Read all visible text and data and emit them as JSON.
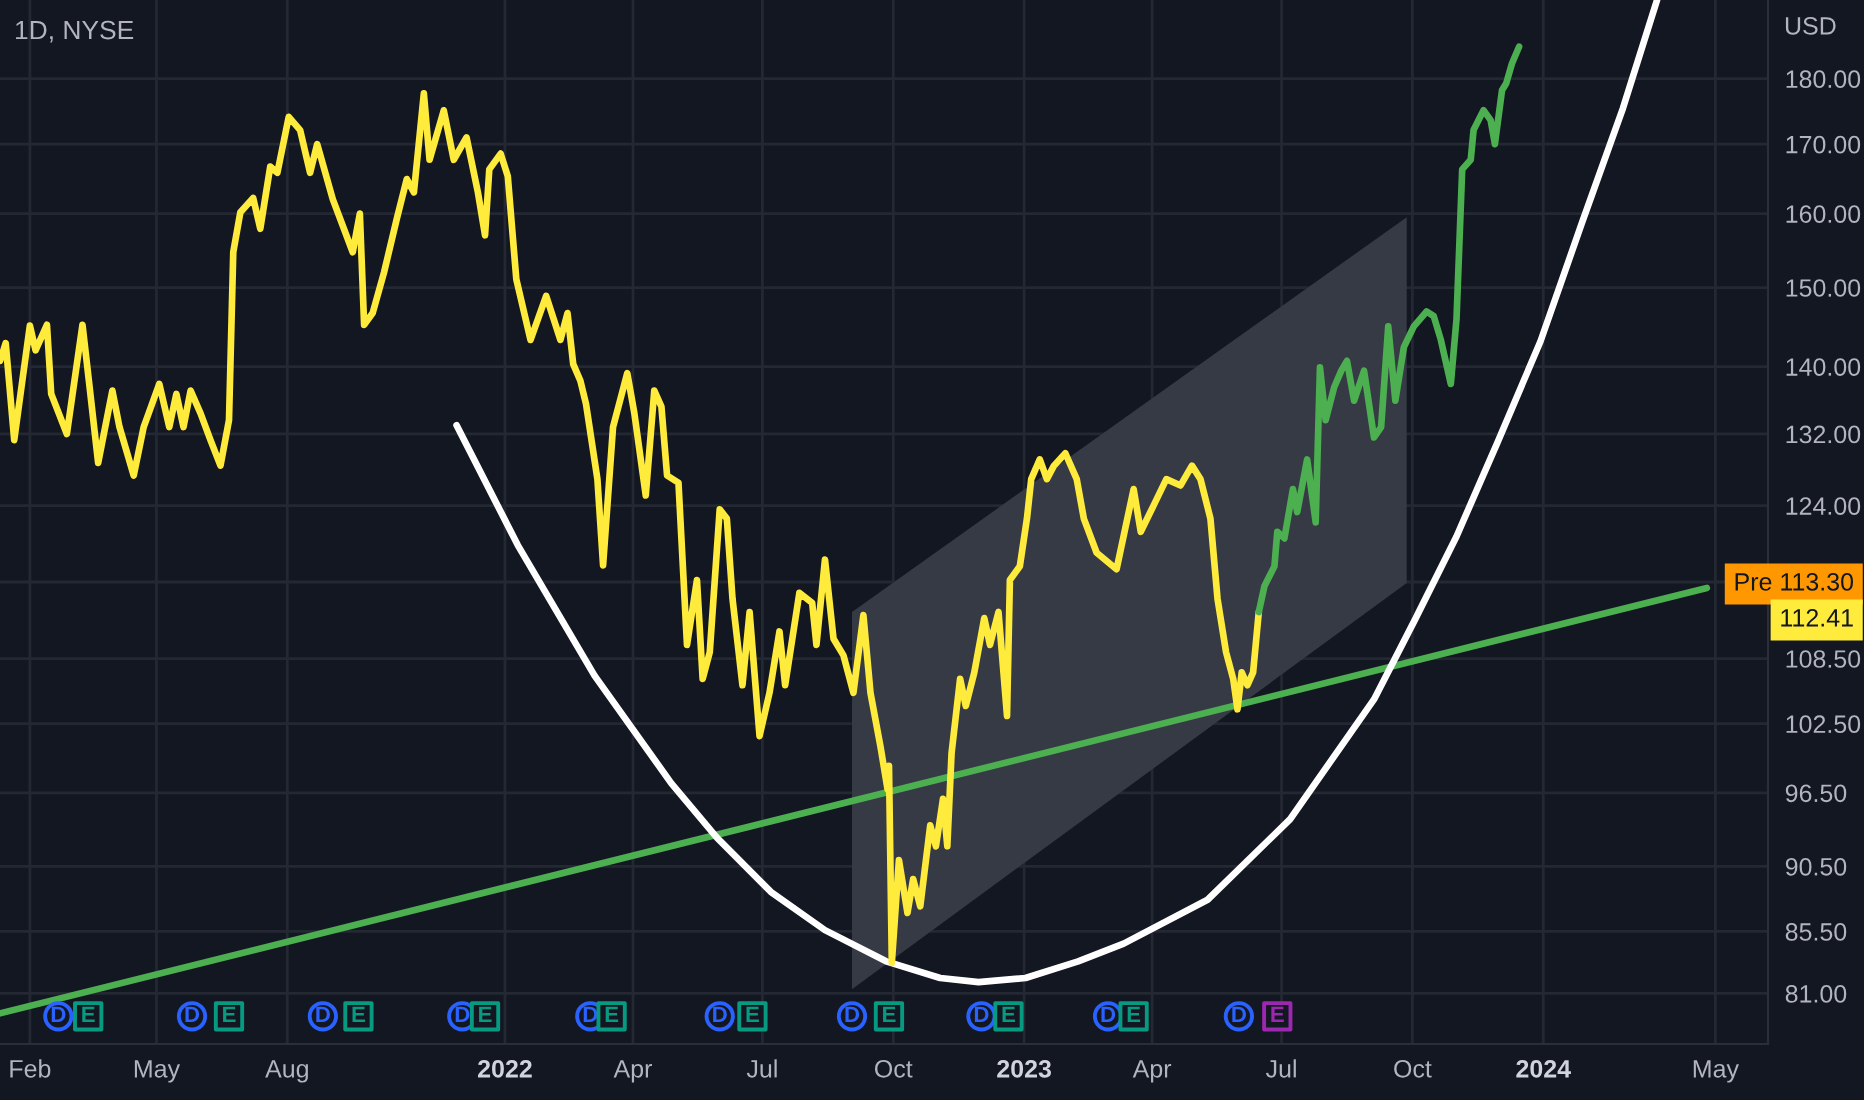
{
  "chart_data": {
    "type": "line",
    "title": "1D, NYSE",
    "ylabel": "USD",
    "log": "y",
    "grid": true,
    "xlim": [
      "2021-01-11",
      "2024-06-07"
    ],
    "ylim": [
      77.5,
      192.8
    ],
    "xticks": [
      {
        "value": "2021-02-01",
        "label": "Feb"
      },
      {
        "value": "2021-05-01",
        "label": "May"
      },
      {
        "value": "2021-08-01",
        "label": "Aug"
      },
      {
        "value": "2022-01-01",
        "label": "2022"
      },
      {
        "value": "2022-04-01",
        "label": "Apr"
      },
      {
        "value": "2022-07-01",
        "label": "Jul"
      },
      {
        "value": "2022-10-01",
        "label": "Oct"
      },
      {
        "value": "2023-01-01",
        "label": "2023"
      },
      {
        "value": "2023-04-01",
        "label": "Apr"
      },
      {
        "value": "2023-07-01",
        "label": "Jul"
      },
      {
        "value": "2023-10-01",
        "label": "Oct"
      },
      {
        "value": "2024-01-01",
        "label": "2024"
      },
      {
        "value": "2024-05-01",
        "label": "May"
      }
    ],
    "yticks": [
      {
        "value": 81,
        "label": "81.00"
      },
      {
        "value": 85.5,
        "label": "85.50"
      },
      {
        "value": 90.5,
        "label": "90.50"
      },
      {
        "value": 96.5,
        "label": "96.50"
      },
      {
        "value": 102.5,
        "label": "102.50"
      },
      {
        "value": 108.5,
        "label": "108.50"
      },
      {
        "value": 116,
        "label": null
      },
      {
        "value": 124,
        "label": "124.00"
      },
      {
        "value": 132,
        "label": "132.00"
      },
      {
        "value": 140,
        "label": "140.00"
      },
      {
        "value": 150,
        "label": "150.00"
      },
      {
        "value": 160,
        "label": "160.00"
      },
      {
        "value": 170,
        "label": "170.00"
      },
      {
        "value": 180,
        "label": "180.00"
      }
    ],
    "annotations": [
      "Pre 113.30",
      "112.41"
    ],
    "series": [
      {
        "color": "#363a45",
        "x": [
          "2022-09-02",
          "2023-09-27"
        ],
        "values": [
          null,
          null
        ],
        "lower": [
          81.3,
          115.9
        ],
        "upper": [
          113.0,
          159.5
        ]
      },
      {
        "color": "#4caf50",
        "x": [
          "2021-01-11",
          "2024-04-25"
        ],
        "values": [
          79.6,
          115.4
        ]
      },
      {
        "color": "#ffffff",
        "x": [
          "2021-11-28",
          "2022-01-10",
          "2022-03-05",
          "2022-04-28",
          "2022-05-30",
          "2022-07-07",
          "2022-08-14",
          "2022-09-26",
          "2022-11-03",
          "2022-11-30",
          "2023-01-02",
          "2023-02-08",
          "2023-03-12",
          "2023-05-10",
          "2023-07-07",
          "2023-09-04",
          "2023-10-03",
          "2023-11-01",
          "2023-11-30",
          "2023-12-30",
          "2024-01-28",
          "2024-02-26",
          "2024-03-21"
        ],
        "values": [
          133.0,
          119.8,
          106.9,
          97.3,
          92.8,
          88.5,
          85.6,
          83.3,
          82.1,
          81.8,
          82.1,
          83.3,
          84.6,
          87.9,
          94.3,
          104.7,
          112.3,
          120.7,
          131.1,
          143.1,
          158.6,
          175.4,
          192.8
        ]
      },
      {
        "color": "#ffeb3b",
        "x": [
          "2021-01-11",
          "2021-01-15",
          "2021-01-21",
          "2021-02-01",
          "2021-02-05",
          "2021-02-13",
          "2021-02-16",
          "2021-02-27",
          "2021-03-10",
          "2021-03-15",
          "2021-03-21",
          "2021-03-31",
          "2021-04-05",
          "2021-04-15",
          "2021-04-22",
          "2021-05-03",
          "2021-05-10",
          "2021-05-15",
          "2021-05-20",
          "2021-05-25",
          "2021-06-01",
          "2021-06-08",
          "2021-06-15",
          "2021-06-21",
          "2021-06-24",
          "2021-06-29",
          "2021-07-08",
          "2021-07-13",
          "2021-07-20",
          "2021-07-25",
          "2021-08-02",
          "2021-08-10",
          "2021-08-17",
          "2021-08-22",
          "2021-09-02",
          "2021-09-16",
          "2021-09-21",
          "2021-09-24",
          "2021-09-30",
          "2021-10-08",
          "2021-10-17",
          "2021-10-24",
          "2021-10-29",
          "2021-11-05",
          "2021-11-09",
          "2021-11-19",
          "2021-11-26",
          "2021-12-05",
          "2021-12-13",
          "2021-12-18",
          "2021-12-21",
          "2021-12-29",
          "2022-01-03",
          "2022-01-09",
          "2022-01-19",
          "2022-01-30",
          "2022-02-09",
          "2022-02-14",
          "2022-02-18",
          "2022-02-23",
          "2022-02-27",
          "2022-03-07",
          "2022-03-11",
          "2022-03-18",
          "2022-03-28",
          "2022-04-02",
          "2022-04-10",
          "2022-04-16",
          "2022-04-21",
          "2022-04-25",
          "2022-05-03",
          "2022-05-09",
          "2022-05-16",
          "2022-05-20",
          "2022-05-25",
          "2022-06-01",
          "2022-06-06",
          "2022-06-10",
          "2022-06-17",
          "2022-06-22",
          "2022-06-29",
          "2022-07-06",
          "2022-07-13",
          "2022-07-17",
          "2022-07-27",
          "2022-08-05",
          "2022-08-08",
          "2022-08-14",
          "2022-08-20",
          "2022-08-27",
          "2022-09-03",
          "2022-09-10",
          "2022-09-15",
          "2022-09-22",
          "2022-09-27",
          "2022-09-28",
          "2022-09-30",
          "2022-10-05",
          "2022-10-11",
          "2022-10-15",
          "2022-10-20",
          "2022-10-27",
          "2022-10-31",
          "2022-11-05",
          "2022-11-08",
          "2022-11-11",
          "2022-11-17",
          "2022-11-21",
          "2022-11-27",
          "2022-12-04",
          "2022-12-08",
          "2022-12-14",
          "2022-12-20",
          "2022-12-22",
          "2022-12-29",
          "2023-01-03",
          "2023-01-06",
          "2023-01-12",
          "2023-01-17",
          "2023-01-22",
          "2023-01-30",
          "2023-02-07",
          "2023-02-12",
          "2023-02-21",
          "2023-03-07",
          "2023-03-19",
          "2023-03-24",
          "2023-04-02",
          "2023-04-11",
          "2023-04-21",
          "2023-04-29",
          "2023-05-05",
          "2023-05-12",
          "2023-05-17",
          "2023-05-23",
          "2023-05-28",
          "2023-05-31",
          "2023-06-03",
          "2023-06-07",
          "2023-06-11",
          "2023-06-15"
        ],
        "values": [
          140.7,
          142.9,
          131.3,
          145.1,
          142.0,
          145.2,
          136.7,
          132.0,
          145.2,
          137.5,
          128.7,
          137.1,
          132.8,
          127.3,
          132.8,
          137.9,
          132.8,
          136.7,
          132.8,
          137.1,
          134.4,
          131.3,
          128.4,
          133.6,
          154.7,
          160.2,
          162.2,
          157.9,
          166.7,
          165.8,
          174.1,
          172.1,
          165.8,
          170.0,
          162.0,
          154.7,
          160.0,
          145.2,
          146.7,
          152.0,
          159.3,
          164.9,
          163.0,
          177.7,
          167.7,
          175.1,
          167.7,
          171.0,
          163.0,
          157.0,
          166.3,
          168.6,
          165.3,
          151.1,
          143.3,
          148.9,
          143.3,
          146.7,
          140.3,
          138.3,
          135.5,
          126.9,
          117.7,
          132.8,
          139.2,
          134.4,
          125.1,
          137.1,
          135.2,
          127.3,
          126.5,
          109.8,
          116.2,
          106.6,
          109.1,
          123.6,
          122.6,
          114.3,
          106.0,
          113.0,
          101.4,
          105.3,
          111.1,
          106.0,
          114.9,
          113.9,
          109.8,
          118.3,
          110.4,
          108.8,
          105.3,
          112.7,
          105.3,
          100.5,
          96.8,
          98.8,
          83.2,
          91.0,
          86.9,
          89.5,
          87.4,
          93.8,
          92.1,
          96.0,
          92.1,
          99.9,
          106.6,
          104.1,
          107.2,
          112.4,
          109.8,
          113.0,
          103.2,
          116.2,
          117.6,
          122.6,
          126.9,
          129.1,
          126.9,
          128.4,
          129.8,
          126.9,
          122.6,
          119.0,
          117.3,
          125.8,
          121.2,
          124.0,
          126.9,
          126.2,
          128.4,
          126.9,
          122.6,
          114.3,
          109.1,
          106.6,
          103.8,
          107.2,
          106.0,
          107.2,
          113.0
        ]
      },
      {
        "color": "#4caf50",
        "x": [
          "2023-06-15",
          "2023-06-19",
          "2023-06-26",
          "2023-06-28",
          "2023-07-03",
          "2023-07-09",
          "2023-07-12",
          "2023-07-19",
          "2023-07-25",
          "2023-07-28",
          "2023-08-01",
          "2023-08-07",
          "2023-08-12",
          "2023-08-16",
          "2023-08-21",
          "2023-08-28",
          "2023-09-04",
          "2023-09-09",
          "2023-09-14",
          "2023-09-19",
          "2023-09-25",
          "2023-10-02",
          "2023-10-11",
          "2023-10-16",
          "2023-10-21",
          "2023-10-28",
          "2023-11-01",
          "2023-11-05",
          "2023-11-11",
          "2023-11-13",
          "2023-11-20",
          "2023-11-25",
          "2023-11-28",
          "2023-12-03",
          "2023-12-06",
          "2023-12-10",
          "2023-12-15"
        ],
        "values": [
          113.0,
          115.6,
          117.6,
          121.2,
          120.5,
          125.8,
          123.3,
          129.1,
          122.2,
          139.9,
          133.6,
          137.5,
          139.5,
          140.7,
          135.9,
          139.5,
          131.6,
          132.8,
          145.0,
          135.9,
          142.4,
          145.0,
          146.9,
          146.3,
          143.3,
          137.9,
          145.9,
          166.3,
          167.7,
          172.1,
          175.1,
          173.6,
          170.0,
          178.2,
          179.3,
          182.4,
          185.1
        ]
      },
      {
        "type": "scatter",
        "color": "#2962ff",
        "marker": "circle",
        "x": [
          "2021-02-21",
          "2021-05-26",
          "2021-08-26",
          "2021-12-02",
          "2022-03-02",
          "2022-06-01",
          "2022-09-02",
          "2022-12-02",
          "2023-03-01",
          "2023-06-01"
        ],
        "values": [
          79.4,
          79.4,
          79.4,
          79.4,
          79.4,
          79.4,
          79.4,
          79.4,
          79.4,
          79.4
        ],
        "value_labels": [
          "D",
          "D",
          "D",
          "D",
          "D",
          "D",
          "D",
          "D",
          "D",
          "D"
        ]
      },
      {
        "type": "scatter",
        "color": "#089981",
        "marker": "square",
        "x": [
          "2021-03-14",
          "2021-06-21",
          "2021-09-20",
          "2021-12-18",
          "2022-03-17",
          "2022-06-24",
          "2022-09-28",
          "2022-12-21",
          "2023-03-19"
        ],
        "values": [
          79.4,
          79.4,
          79.4,
          79.4,
          79.4,
          79.4,
          79.4,
          79.4,
          79.4
        ],
        "value_labels": [
          "E",
          "E",
          "E",
          "E",
          "E",
          "E",
          "E",
          "E",
          "E"
        ]
      },
      {
        "type": "scatter",
        "color": "#9c27b0",
        "marker": "square",
        "x": [
          "2023-06-28"
        ],
        "values": [
          79.4
        ],
        "value_labels": [
          "E"
        ]
      }
    ]
  }
}
